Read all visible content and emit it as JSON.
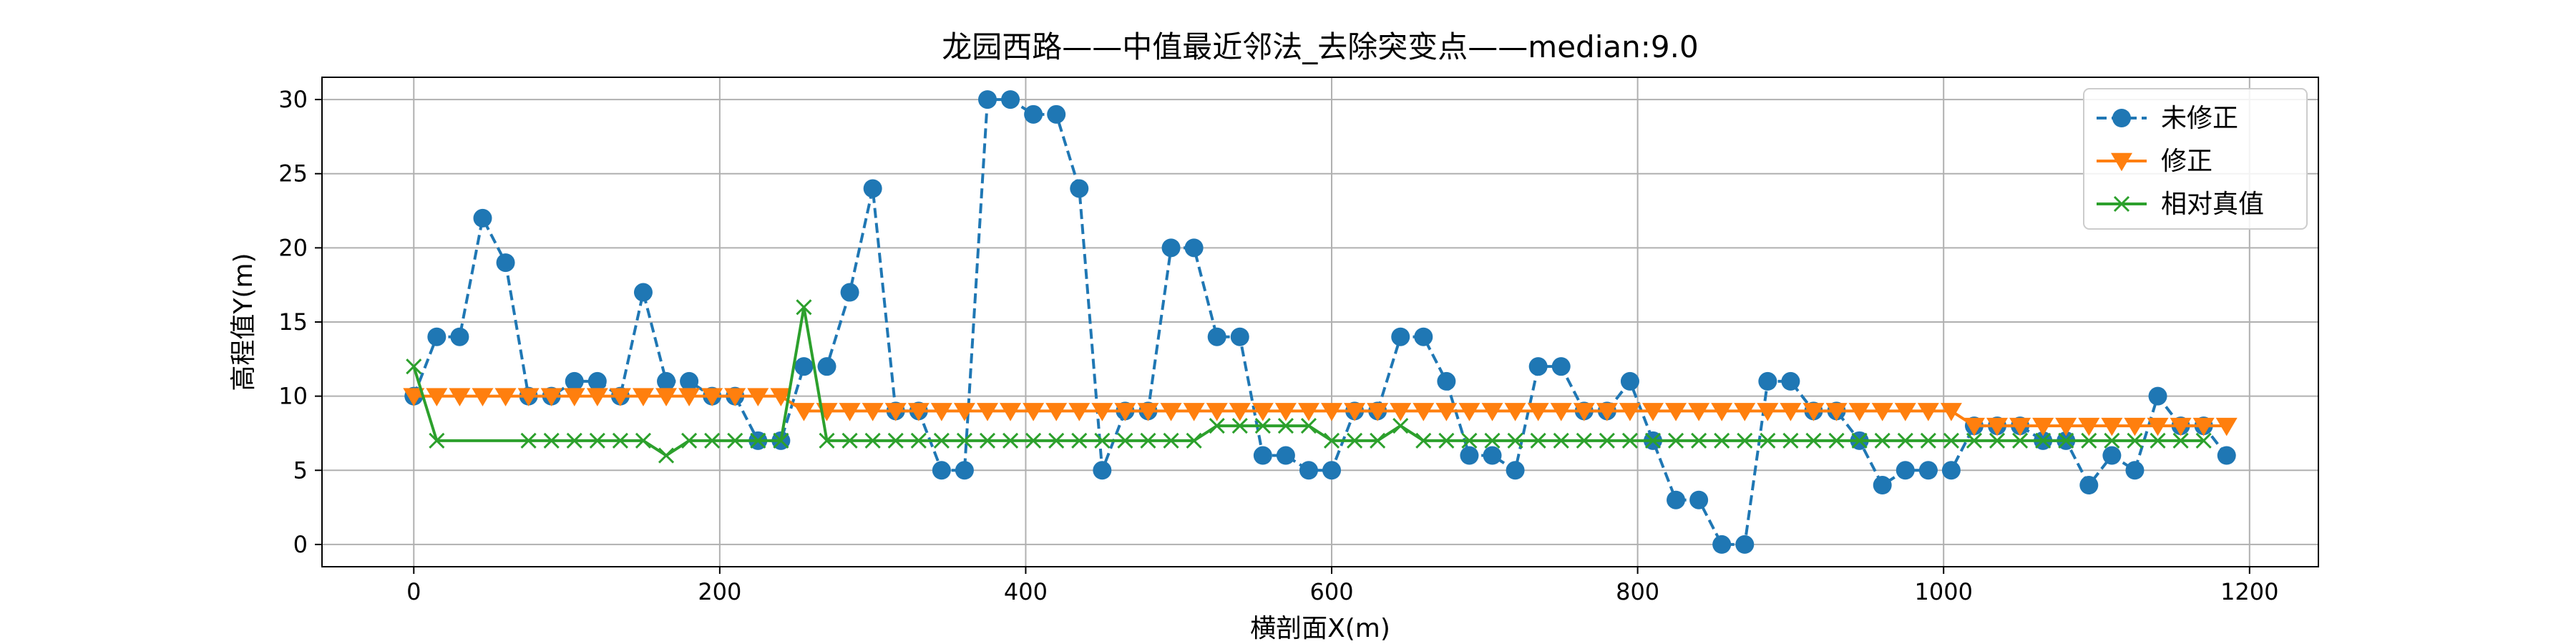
{
  "chart_data": {
    "type": "line",
    "title": "龙园西路——中值最近邻法_去除突变点——median:9.0",
    "xlabel": "横剖面X(m)",
    "ylabel": "高程值Y(m)",
    "xlim": [
      -60,
      1245
    ],
    "ylim": [
      -1.5,
      31.5
    ],
    "xticks": [
      0,
      200,
      400,
      600,
      800,
      1000,
      1200
    ],
    "yticks": [
      0,
      5,
      10,
      15,
      20,
      25,
      30
    ],
    "grid": true,
    "legend_position": "top-right",
    "series": [
      {
        "name": "未修正",
        "color": "#1f77b4",
        "style": "dashed",
        "marker": "circle",
        "x": [
          0,
          15,
          30,
          45,
          60,
          75,
          90,
          105,
          120,
          135,
          150,
          165,
          180,
          195,
          210,
          225,
          240,
          255,
          270,
          285,
          300,
          315,
          330,
          345,
          360,
          375,
          390,
          405,
          420,
          435,
          450,
          465,
          480,
          495,
          510,
          525,
          540,
          555,
          570,
          585,
          600,
          615,
          630,
          645,
          660,
          675,
          690,
          705,
          720,
          735,
          750,
          765,
          780,
          795,
          810,
          825,
          840,
          855,
          870,
          885,
          900,
          915,
          930,
          945,
          960,
          975,
          990,
          1005,
          1020,
          1035,
          1050,
          1065,
          1080,
          1095,
          1110,
          1125,
          1140,
          1155,
          1170,
          1185
        ],
        "y": [
          10,
          14,
          14,
          22,
          19,
          10,
          10,
          11,
          11,
          10,
          17,
          11,
          11,
          10,
          10,
          7,
          7,
          12,
          12,
          17,
          24,
          9,
          9,
          5,
          5,
          30,
          30,
          29,
          29,
          24,
          5,
          9,
          9,
          20,
          20,
          14,
          14,
          6,
          6,
          5,
          5,
          9,
          9,
          14,
          14,
          11,
          6,
          6,
          5,
          12,
          12,
          9,
          9,
          11,
          7,
          3,
          3,
          0,
          0,
          11,
          11,
          9,
          9,
          7,
          4,
          5,
          5,
          5,
          8,
          8,
          8,
          7,
          7,
          4,
          6,
          5,
          10,
          8,
          8,
          6
        ]
      },
      {
        "name": "修正",
        "color": "#ff7f0e",
        "style": "solid",
        "marker": "triangle-down",
        "x": [
          0,
          15,
          30,
          45,
          60,
          75,
          90,
          105,
          120,
          135,
          150,
          165,
          180,
          195,
          210,
          225,
          240,
          255,
          270,
          285,
          300,
          315,
          330,
          345,
          360,
          375,
          390,
          405,
          420,
          435,
          450,
          465,
          480,
          495,
          510,
          525,
          540,
          555,
          570,
          585,
          600,
          615,
          630,
          645,
          660,
          675,
          690,
          705,
          720,
          735,
          750,
          765,
          780,
          795,
          810,
          825,
          840,
          855,
          870,
          885,
          900,
          915,
          930,
          945,
          960,
          975,
          990,
          1005,
          1020,
          1035,
          1050,
          1065,
          1080,
          1095,
          1110,
          1125,
          1140,
          1155,
          1170,
          1185
        ],
        "y": [
          10,
          10,
          10,
          10,
          10,
          10,
          10,
          10,
          10,
          10,
          10,
          10,
          10,
          10,
          10,
          10,
          10,
          9,
          9,
          9,
          9,
          9,
          9,
          9,
          9,
          9,
          9,
          9,
          9,
          9,
          9,
          9,
          9,
          9,
          9,
          9,
          9,
          9,
          9,
          9,
          9,
          9,
          9,
          9,
          9,
          9,
          9,
          9,
          9,
          9,
          9,
          9,
          9,
          9,
          9,
          9,
          9,
          9,
          9,
          9,
          9,
          9,
          9,
          9,
          9,
          9,
          9,
          9,
          8,
          8,
          8,
          8,
          8,
          8,
          8,
          8,
          8,
          8,
          8,
          8
        ]
      },
      {
        "name": "相对真值",
        "color": "#2ca02c",
        "style": "solid",
        "marker": "x",
        "x": [
          0,
          15,
          75,
          90,
          105,
          120,
          135,
          150,
          165,
          180,
          195,
          210,
          225,
          240,
          255,
          270,
          285,
          300,
          315,
          330,
          345,
          360,
          375,
          390,
          405,
          420,
          435,
          450,
          465,
          480,
          495,
          510,
          525,
          540,
          555,
          570,
          585,
          600,
          615,
          630,
          645,
          660,
          675,
          690,
          705,
          720,
          735,
          750,
          765,
          780,
          795,
          810,
          825,
          840,
          855,
          870,
          885,
          900,
          915,
          930,
          945,
          960,
          975,
          990,
          1005,
          1020,
          1035,
          1050,
          1065,
          1080,
          1095,
          1110,
          1125,
          1140,
          1155,
          1170
        ],
        "y": [
          12,
          7,
          7,
          7,
          7,
          7,
          7,
          7,
          6,
          7,
          7,
          7,
          7,
          7,
          16,
          7,
          7,
          7,
          7,
          7,
          7,
          7,
          7,
          7,
          7,
          7,
          7,
          7,
          7,
          7,
          7,
          7,
          8,
          8,
          8,
          8,
          8,
          7,
          7,
          7,
          8,
          7,
          7,
          7,
          7,
          7,
          7,
          7,
          7,
          7,
          7,
          7,
          7,
          7,
          7,
          7,
          7,
          7,
          7,
          7,
          7,
          7,
          7,
          7,
          7,
          7,
          7,
          7,
          7,
          7,
          7,
          7,
          7,
          7,
          7,
          7
        ]
      }
    ]
  }
}
